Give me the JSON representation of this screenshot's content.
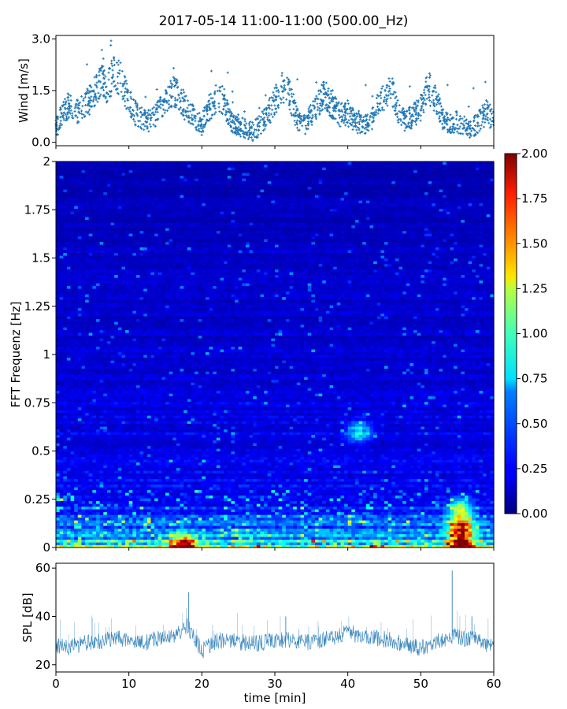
{
  "title": "2017-05-14 11:00-11:00 (500.00_Hz)",
  "chart_data": [
    {
      "type": "scatter",
      "panel": "wind",
      "ylabel": "Wind [m/s]",
      "xlabel": "",
      "xlim": [
        0,
        60
      ],
      "ylim": [
        -0.1,
        3.1
      ],
      "yticks": [
        "0.0",
        "1.5",
        "3.0"
      ],
      "color": "#1f77b4",
      "x": [
        0,
        1,
        2,
        3,
        4,
        5,
        6,
        7,
        8,
        9,
        10,
        11,
        12,
        13,
        14,
        15,
        16,
        17,
        18,
        19,
        20,
        21,
        22,
        23,
        24,
        25,
        26,
        27,
        28,
        29,
        30,
        31,
        32,
        33,
        34,
        35,
        36,
        37,
        38,
        39,
        40,
        41,
        42,
        43,
        44,
        45,
        46,
        47,
        48,
        49,
        50,
        51,
        52,
        53,
        54,
        55,
        56,
        57,
        58,
        59,
        60
      ],
      "y": [
        0.4,
        0.9,
        1.1,
        0.9,
        1.1,
        1.3,
        1.8,
        1.6,
        2.0,
        1.8,
        1.2,
        0.8,
        0.7,
        0.6,
        0.9,
        1.1,
        1.5,
        1.3,
        0.9,
        0.7,
        0.5,
        1.0,
        1.3,
        1.2,
        0.6,
        0.5,
        0.4,
        0.3,
        0.5,
        0.8,
        1.2,
        1.6,
        1.4,
        0.7,
        0.5,
        0.8,
        1.2,
        1.4,
        1.0,
        0.8,
        0.8,
        0.6,
        0.5,
        0.5,
        1.0,
        1.3,
        1.5,
        0.9,
        0.6,
        0.8,
        1.0,
        1.6,
        1.3,
        0.7,
        0.5,
        0.6,
        0.5,
        0.4,
        0.6,
        0.9,
        0.6
      ]
    },
    {
      "type": "heatmap",
      "panel": "spectrogram",
      "ylabel": "FFT Frequenz [Hz]",
      "xlabel": "",
      "xlim": [
        0,
        60
      ],
      "ylim": [
        0,
        2
      ],
      "yticks": [
        "0",
        "0.25",
        "0.5",
        "0.75",
        "1",
        "1.25",
        "1.5",
        "1.75",
        "2"
      ],
      "colorbar": {
        "ticks": [
          "0.00",
          "0.25",
          "0.50",
          "0.75",
          "1.00",
          "1.25",
          "1.50",
          "1.75",
          "2.00"
        ],
        "range": [
          0,
          2
        ],
        "colormap": "jet"
      },
      "baseline_profile": {
        "freq_hz": [
          0,
          0.05,
          0.1,
          0.15,
          0.2,
          0.25,
          0.3,
          0.5,
          0.75,
          1,
          1.5,
          2
        ],
        "level": [
          0.9,
          0.55,
          0.45,
          0.35,
          0.3,
          0.26,
          0.24,
          0.2,
          0.18,
          0.16,
          0.13,
          0.1
        ]
      },
      "hotspots": [
        {
          "time_min": 17.5,
          "freq_hz": 0.01,
          "level": 1.9
        },
        {
          "time_min": 55.5,
          "freq_hz": 0.01,
          "level": 2.0
        },
        {
          "time_min": 55.5,
          "freq_hz": 0.1,
          "level": 1.6
        },
        {
          "time_min": 55.5,
          "freq_hz": 0.2,
          "level": 1.0
        },
        {
          "time_min": 41.5,
          "freq_hz": 0.6,
          "level": 0.7
        }
      ]
    },
    {
      "type": "line",
      "panel": "spl",
      "ylabel": "SPL [dB]",
      "xlabel": "time [min]",
      "xlim": [
        0,
        60
      ],
      "ylim": [
        17,
        62
      ],
      "xticks": [
        "0",
        "10",
        "20",
        "30",
        "40",
        "50",
        "60"
      ],
      "yticks": [
        "20",
        "40",
        "60"
      ],
      "color": "#1f77b4",
      "x": [
        0,
        2,
        4,
        6,
        8,
        10,
        12,
        14,
        16,
        17,
        18,
        19,
        20,
        22,
        24,
        26,
        28,
        30,
        32,
        34,
        36,
        38,
        40,
        42,
        44,
        46,
        48,
        50,
        52,
        54,
        56,
        58,
        60
      ],
      "y": [
        28,
        27,
        29,
        30,
        31,
        30,
        29,
        31,
        32,
        33,
        36,
        31,
        26,
        30,
        30,
        29,
        29,
        30,
        30,
        29,
        30,
        31,
        34,
        31,
        31,
        30,
        28,
        27,
        29,
        32,
        31,
        30,
        27
      ],
      "spikes": [
        {
          "x": 18.2,
          "y": 50
        },
        {
          "x": 54.3,
          "y": 59
        },
        {
          "x": 31.5,
          "y": 40
        },
        {
          "x": 57.0,
          "y": 40
        }
      ]
    }
  ]
}
